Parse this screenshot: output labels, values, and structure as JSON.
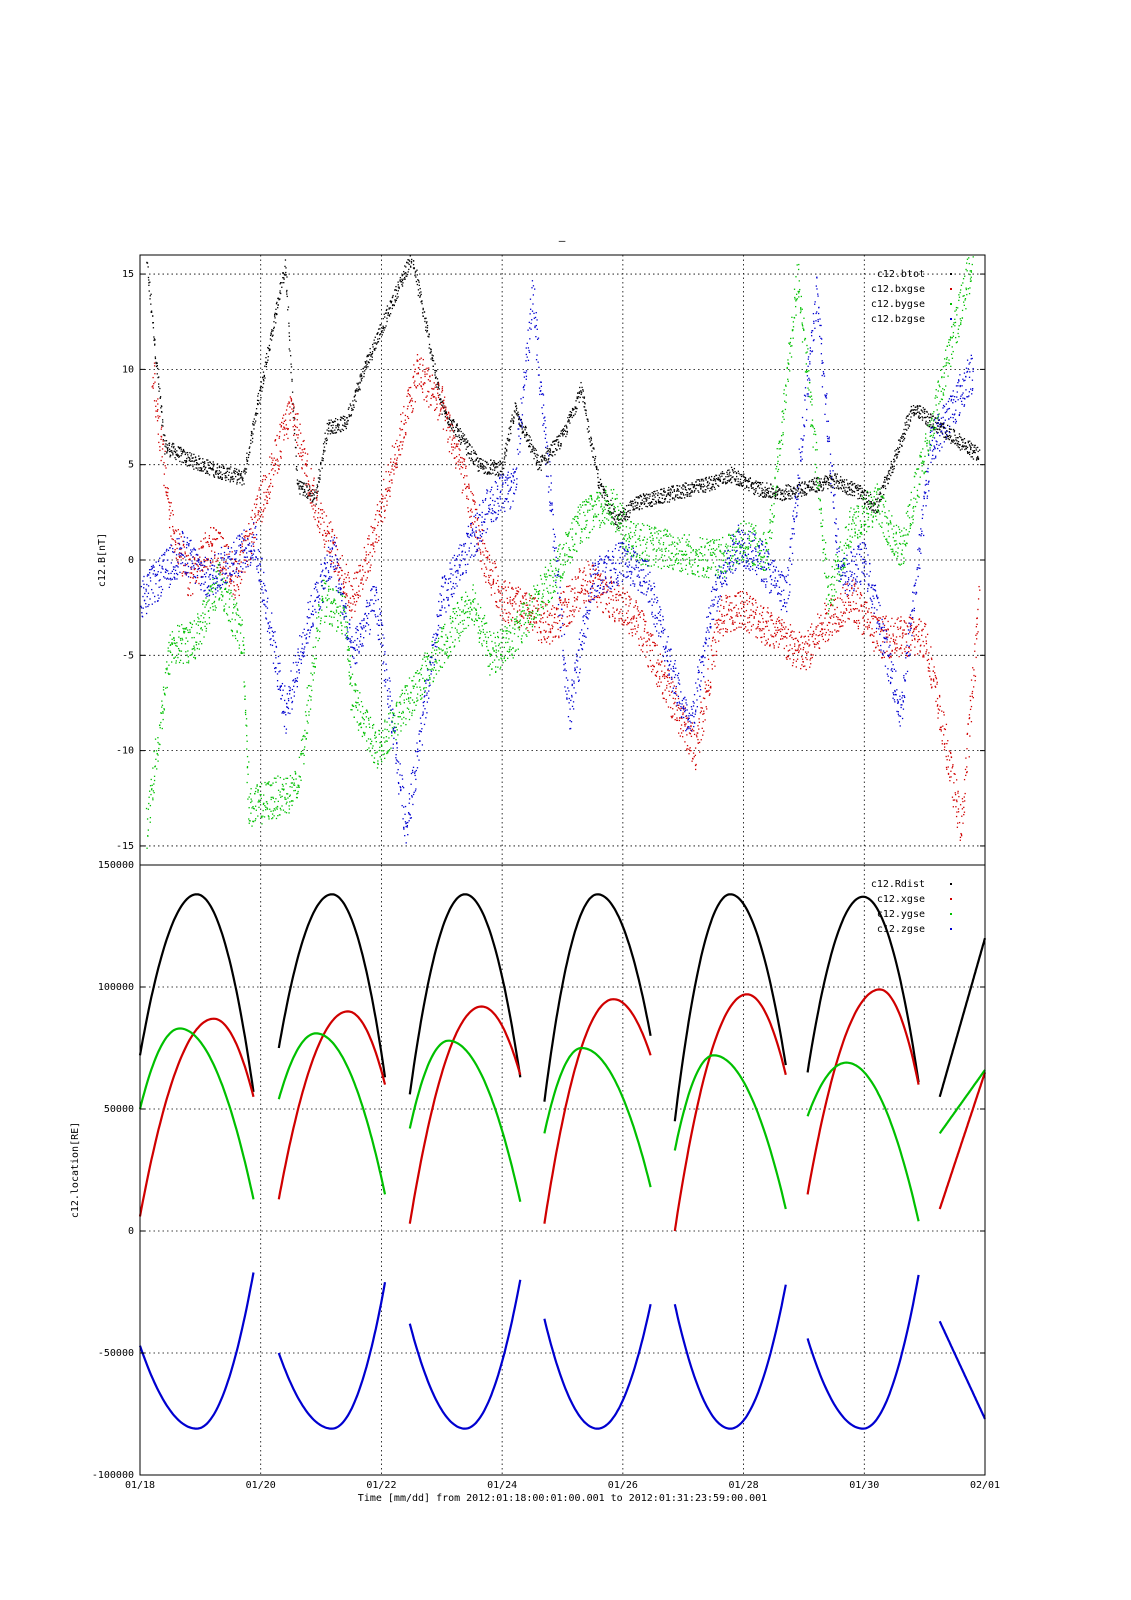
{
  "page": {
    "title_mark": "–"
  },
  "colors": {
    "btot": "#000000",
    "bxgse": "#d00000",
    "bygse": "#00c000",
    "bzgse": "#0000d0",
    "grid": "#000000"
  },
  "chart_data": [
    {
      "type": "scatter",
      "ylabel": "c12.B[nT]",
      "ylim": [
        -16,
        16
      ],
      "yticks": [
        15,
        10,
        5,
        0,
        -5,
        -10,
        -15
      ],
      "ytick_labels": [
        "15",
        "10",
        "5",
        "0",
        "-5",
        "-10",
        "-15"
      ],
      "xlim": [
        0,
        14
      ],
      "xticks": [
        0,
        2,
        4,
        6,
        8,
        10,
        12,
        14
      ],
      "legend_position": "top-right",
      "grid": true,
      "series": [
        {
          "name": "c12.btot",
          "color": "#000000",
          "note_points": [
            [
              0.1,
              15.8
            ],
            [
              0.4,
              6.0
            ],
            [
              0.8,
              5.3
            ],
            [
              1.2,
              4.8
            ],
            [
              1.5,
              4.5
            ],
            [
              1.7,
              4.3
            ],
            [
              2.4,
              15.5
            ],
            [
              2.6,
              4.0
            ],
            [
              2.9,
              3.3
            ],
            [
              3.1,
              7.0
            ],
            [
              3.4,
              7.2
            ],
            [
              3.7,
              10.0
            ],
            [
              4.5,
              16.0
            ],
            [
              5.0,
              8.0
            ],
            [
              5.3,
              6.5
            ],
            [
              5.6,
              5.0
            ],
            [
              6.0,
              4.8
            ],
            [
              6.2,
              8.0
            ],
            [
              6.6,
              5.0
            ],
            [
              7.0,
              6.5
            ],
            [
              7.3,
              9.0
            ],
            [
              7.6,
              4.0
            ],
            [
              7.9,
              2.0
            ],
            [
              8.2,
              3.0
            ],
            [
              9.4,
              4.0
            ],
            [
              9.8,
              4.5
            ],
            [
              10.2,
              3.8
            ],
            [
              10.6,
              3.5
            ],
            [
              11.5,
              4.2
            ],
            [
              11.9,
              3.6
            ],
            [
              12.2,
              2.8
            ],
            [
              12.8,
              8.0
            ],
            [
              13.9,
              5.5
            ]
          ]
        },
        {
          "name": "c12.bxgse",
          "color": "#d00000",
          "note_points": [
            [
              0.2,
              10.0
            ],
            [
              0.5,
              2.0
            ],
            [
              0.8,
              -1.0
            ],
            [
              1.2,
              1.0
            ],
            [
              1.6,
              -1.0
            ],
            [
              2.5,
              8.0
            ],
            [
              2.9,
              3.0
            ],
            [
              3.2,
              0.5
            ],
            [
              3.5,
              -2.0
            ],
            [
              3.8,
              0.5
            ],
            [
              4.6,
              10.0
            ],
            [
              5.0,
              8.0
            ],
            [
              5.3,
              5.0
            ],
            [
              5.7,
              0.0
            ],
            [
              6.0,
              -2.0
            ],
            [
              6.8,
              -3.5
            ],
            [
              7.4,
              -1.0
            ],
            [
              7.8,
              -2.0
            ],
            [
              8.2,
              -3.0
            ],
            [
              9.2,
              -10.0
            ],
            [
              9.6,
              -3.0
            ],
            [
              10.0,
              -2.5
            ],
            [
              10.4,
              -3.5
            ],
            [
              11.0,
              -5.0
            ],
            [
              11.4,
              -3.0
            ],
            [
              11.8,
              -2.0
            ],
            [
              12.2,
              -4.0
            ],
            [
              13.0,
              -4.0
            ],
            [
              13.6,
              -14.0
            ],
            [
              13.9,
              -2.0
            ]
          ]
        },
        {
          "name": "c12.bygse",
          "color": "#00c000",
          "note_points": [
            [
              0.1,
              -14.0
            ],
            [
              0.5,
              -4.5
            ],
            [
              0.9,
              -4.2
            ],
            [
              1.3,
              -1.0
            ],
            [
              1.7,
              -4.2
            ],
            [
              1.8,
              -13.0
            ],
            [
              2.6,
              -12.0
            ],
            [
              3.0,
              -2.0
            ],
            [
              3.4,
              -3.0
            ],
            [
              3.5,
              -7.0
            ],
            [
              3.9,
              -10.0
            ],
            [
              5.5,
              -2.0
            ],
            [
              5.8,
              -5.0
            ],
            [
              6.2,
              -4.0
            ],
            [
              6.8,
              -1.0
            ],
            [
              7.3,
              2.0
            ],
            [
              7.8,
              3.0
            ],
            [
              8.1,
              1.0
            ],
            [
              9.6,
              0.0
            ],
            [
              10.0,
              1.0
            ],
            [
              10.4,
              0.5
            ],
            [
              10.9,
              15.0
            ],
            [
              11.4,
              -2.0
            ],
            [
              11.8,
              2.0
            ],
            [
              12.2,
              3.0
            ],
            [
              12.6,
              0.5
            ],
            [
              13.8,
              16.0
            ]
          ]
        },
        {
          "name": "c12.bzgse",
          "color": "#0000d0",
          "note_points": [
            [
              0.0,
              -2.0
            ],
            [
              0.3,
              -1.0
            ],
            [
              0.7,
              0.5
            ],
            [
              1.1,
              -1.0
            ],
            [
              1.5,
              0.0
            ],
            [
              1.9,
              1.0
            ],
            [
              2.4,
              -8.0
            ],
            [
              2.8,
              -3.0
            ],
            [
              3.2,
              0.5
            ],
            [
              3.5,
              -5.0
            ],
            [
              3.9,
              -2.0
            ],
            [
              4.4,
              -14.0
            ],
            [
              5.0,
              -2.0
            ],
            [
              5.4,
              0.5
            ],
            [
              5.8,
              3.0
            ],
            [
              6.2,
              4.0
            ],
            [
              6.5,
              14.0
            ],
            [
              7.1,
              -8.0
            ],
            [
              7.5,
              -1.0
            ],
            [
              8.0,
              0.0
            ],
            [
              8.4,
              -1.0
            ],
            [
              9.1,
              -9.0
            ],
            [
              9.5,
              -2.0
            ],
            [
              9.9,
              1.0
            ],
            [
              10.3,
              0.0
            ],
            [
              10.7,
              -2.0
            ],
            [
              11.2,
              14.0
            ],
            [
              11.6,
              -1.0
            ],
            [
              12.0,
              0.0
            ],
            [
              12.6,
              -8.0
            ],
            [
              13.1,
              6.0
            ],
            [
              13.8,
              10.0
            ]
          ]
        }
      ]
    },
    {
      "type": "scatter",
      "ylabel": "c12.location[RE]",
      "ylim": [
        -100000,
        150000
      ],
      "yticks": [
        150000,
        100000,
        50000,
        0,
        -50000,
        -100000
      ],
      "ytick_labels": [
        "150000",
        "100000",
        "50000",
        "0",
        "-50000",
        "-100000"
      ],
      "xlim": [
        0,
        14
      ],
      "xticks": [
        0,
        2,
        4,
        6,
        8,
        10,
        12,
        14
      ],
      "xtick_labels": [
        "01/18",
        "01/20",
        "01/22",
        "01/24",
        "01/26",
        "01/28",
        "01/30",
        "02/01"
      ],
      "xlabel": "Time [mm/dd]  from 2012:01:18:00:01:00.001  to  2012:01:31:23:59:00.001",
      "legend_position": "top-right",
      "grid": true,
      "orbits": [
        {
          "start": 0.0,
          "end": 1.88
        },
        {
          "start": 2.3,
          "end": 4.06
        },
        {
          "start": 4.47,
          "end": 6.3
        },
        {
          "start": 6.7,
          "end": 8.46
        },
        {
          "start": 8.86,
          "end": 10.7
        },
        {
          "start": 11.06,
          "end": 12.9
        },
        {
          "start": 13.25,
          "end": 14.0
        }
      ],
      "series": [
        {
          "name": "c12.Rdist",
          "color": "#000000",
          "peak": 137000,
          "orbit_values": [
            [
              72000,
              138000,
              57000
            ],
            [
              75000,
              138000,
              63000
            ],
            [
              56000,
              138000,
              63000
            ],
            [
              53000,
              138000,
              80000
            ],
            [
              45000,
              138000,
              68000
            ],
            [
              65000,
              137000,
              61000
            ],
            [
              55000,
              null,
              120000
            ]
          ]
        },
        {
          "name": "c12.xgse",
          "color": "#d00000",
          "orbit_values": [
            [
              6000,
              87000,
              55000
            ],
            [
              13000,
              90000,
              60000
            ],
            [
              3000,
              92000,
              64000
            ],
            [
              3000,
              95000,
              72000
            ],
            [
              0,
              97000,
              64000
            ],
            [
              15000,
              99000,
              60000
            ],
            [
              9000,
              null,
              65000
            ]
          ]
        },
        {
          "name": "c12.ygse",
          "color": "#00c000",
          "orbit_values": [
            [
              50000,
              83000,
              13000
            ],
            [
              54000,
              81000,
              15000
            ],
            [
              42000,
              78000,
              12000
            ],
            [
              40000,
              75000,
              18000
            ],
            [
              33000,
              72000,
              9000
            ],
            [
              47000,
              69000,
              4000
            ],
            [
              40000,
              null,
              66000
            ]
          ]
        },
        {
          "name": "c12.zgse",
          "color": "#0000d0",
          "orbit_values": [
            [
              -47000,
              -81000,
              -17000
            ],
            [
              -50000,
              -81000,
              -21000
            ],
            [
              -38000,
              -81000,
              -20000
            ],
            [
              -36000,
              -81000,
              -30000
            ],
            [
              -30000,
              -81000,
              -22000
            ],
            [
              -44000,
              -81000,
              -18000
            ],
            [
              -37000,
              null,
              -77000
            ]
          ]
        }
      ]
    }
  ]
}
